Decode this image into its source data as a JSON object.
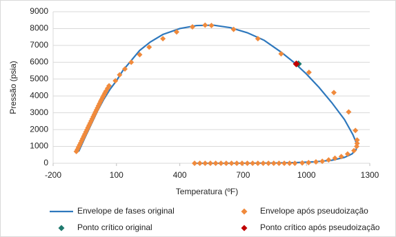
{
  "chart_data": {
    "type": "scatter",
    "x_label": "Temperatura (ºF)",
    "y_label": "Pressão (psia)",
    "xlim": [
      -200,
      1300
    ],
    "xticks": [
      -200,
      100,
      400,
      700,
      1000,
      1300
    ],
    "ylim": [
      0,
      9000
    ],
    "yticks": [
      0,
      1000,
      2000,
      3000,
      4000,
      5000,
      6000,
      7000,
      8000,
      9000
    ],
    "grid": true,
    "legend": "bottom",
    "series": [
      {
        "name": "Envelope de fases original",
        "color": "#2e78bd",
        "style": "line",
        "x": [
          -79,
          -50,
          -20,
          10,
          40,
          70,
          100,
          130,
          170,
          210,
          260,
          320,
          400,
          480,
          560,
          640,
          720,
          800,
          880,
          940,
          1000,
          1060,
          1120,
          1180,
          1220,
          1240,
          1235,
          1215,
          1180,
          1120,
          1040,
          950,
          850,
          750,
          600,
          480
        ],
        "y": [
          700,
          1500,
          2300,
          3100,
          3800,
          4400,
          4900,
          5500,
          6100,
          6700,
          7200,
          7650,
          8000,
          8180,
          8200,
          8050,
          7750,
          7300,
          6600,
          6000,
          5300,
          4500,
          3600,
          2600,
          1700,
          1100,
          800,
          550,
          350,
          180,
          90,
          40,
          15,
          5,
          0,
          0
        ]
      },
      {
        "name": "Envelope após pseudoização",
        "color": "#f08a3c",
        "style": "diamond",
        "x": [
          -90,
          -85,
          -80,
          -75,
          -70,
          -65,
          -60,
          -55,
          -50,
          -45,
          -40,
          -35,
          -30,
          -25,
          -20,
          -15,
          -10,
          -5,
          0,
          5,
          10,
          15,
          20,
          25,
          30,
          35,
          40,
          45,
          50,
          58,
          65,
          95,
          115,
          140,
          170,
          210,
          255,
          320,
          385,
          460,
          520,
          550,
          655,
          770,
          880,
          1012,
          1130,
          1200,
          1232,
          1240,
          1240,
          1238,
          1225,
          1195,
          1165,
          1135,
          1105,
          1075,
          1045,
          1010,
          980,
          470,
          495,
          520,
          545,
          570,
          595,
          620,
          645,
          670,
          695,
          720,
          745,
          770,
          795,
          820,
          845,
          870,
          895,
          920,
          945
        ],
        "y": [
          700,
          820,
          950,
          1080,
          1200,
          1340,
          1470,
          1600,
          1730,
          1860,
          1990,
          2120,
          2250,
          2380,
          2510,
          2640,
          2770,
          2900,
          3030,
          3160,
          3290,
          3420,
          3550,
          3680,
          3800,
          3920,
          4040,
          4160,
          4280,
          4450,
          4600,
          4900,
          5250,
          5600,
          6000,
          6450,
          6900,
          7400,
          7800,
          8100,
          8200,
          8180,
          7950,
          7400,
          6500,
          5400,
          4200,
          3050,
          1950,
          1380,
          1180,
          1000,
          750,
          550,
          400,
          300,
          200,
          120,
          80,
          40,
          20,
          0,
          0,
          0,
          0,
          0,
          0,
          0,
          0,
          0,
          0,
          0,
          0,
          0,
          0,
          0,
          0,
          0,
          0,
          0,
          0
        ]
      },
      {
        "name": "Ponto crítico original",
        "color": "#1f7a6e",
        "style": "diamond",
        "x": [
          962
        ],
        "y": [
          5900
        ]
      },
      {
        "name": "Ponto crítico após pseudoização",
        "color": "#c00000",
        "style": "diamond",
        "x": [
          952
        ],
        "y": [
          5900
        ]
      }
    ]
  }
}
